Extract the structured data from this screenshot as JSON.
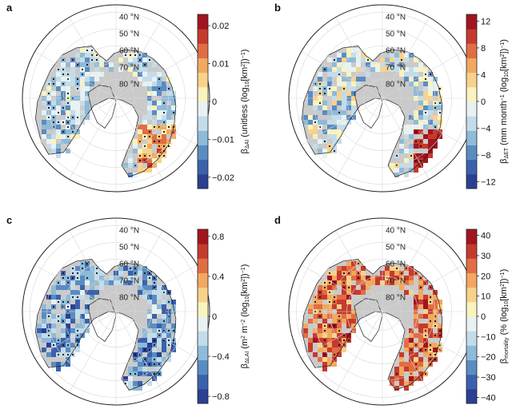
{
  "figure": {
    "panels": [
      {
        "letter": "a",
        "label_html": "β<tspan font-size='7' dy='2'>ΔAI</tspan><tspan dy='-2'> (unitless (log</tspan><tspan font-size='7' dy='2'>10</tspan><tspan dy='-2'>[km</tspan><tspan font-size='7' dy='-3'>2</tspan><tspan dy='3'>])</tspan><tspan font-size='7' dy='-3'>−1</tspan><tspan dy='3'>)</tspan>"
      },
      {
        "letter": "b",
        "label_html": "β<tspan font-size='7' dy='2'>ΔET</tspan><tspan dy='-2'> (mm month</tspan><tspan font-size='7' dy='-3'>−1</tspan><tspan dy='3'> (log</tspan><tspan font-size='7' dy='2'>10</tspan><tspan dy='-2'>[km</tspan><tspan font-size='7' dy='-3'>2</tspan><tspan dy='3'>])</tspan><tspan font-size='7' dy='-3'>−1</tspan><tspan dy='3'>)</tspan>"
      },
      {
        "letter": "c",
        "label_html": "β<tspan font-size='7' dy='2'>ΔLAI</tspan><tspan dy='-2'> (m</tspan><tspan font-size='7' dy='-3'>2</tspan><tspan dy='3'> m</tspan><tspan font-size='7' dy='-3'>−2</tspan><tspan dy='3'> (log</tspan><tspan font-size='7' dy='2'>10</tspan><tspan dy='-2'>[km</tspan><tspan font-size='7' dy='-3'>2</tspan><tspan dy='3'>])</tspan><tspan font-size='7' dy='-3'>−1</tspan><tspan dy='3'>)</tspan>"
      },
      {
        "letter": "d",
        "label_html": "β<tspan font-size='7' dy='2'>mortality</tspan><tspan dy='-2'> (% (log</tspan><tspan font-size='7' dy='2'>10</tspan><tspan dy='-2'>[km</tspan><tspan font-size='7' dy='-3'>2</tspan><tspan dy='3'>])</tspan><tspan font-size='7' dy='-3'>−1</tspan><tspan dy='3'>)</tspan>"
      }
    ]
  },
  "chart_data": [
    {
      "panel": "a",
      "type": "heatmap",
      "projection": "north polar stereographic",
      "latitude_labels": [
        "40 °N",
        "50 °N",
        "60 °N",
        "70 °N",
        "80 °N"
      ],
      "variable": "βΔAI",
      "colorbar_label": "βΔAI (unitless (log10[km2])−1)",
      "colorbar_range": [
        -0.023,
        0.023
      ],
      "colorbar_ticks": [
        0.02,
        0.01,
        0,
        -0.01,
        -0.02
      ],
      "colorbar_tick_labels": [
        "0.02",
        "0.01",
        "0",
        "−0.01",
        "−0.02"
      ],
      "dominant_values": "mostly negative (blue) across boreal belt; positive (orange) patches in Central Asia",
      "stippling": "dense dots over Siberia and Canada"
    },
    {
      "panel": "b",
      "type": "heatmap",
      "projection": "north polar stereographic",
      "latitude_labels": [
        "40 °N",
        "50 °N",
        "60 °N",
        "70 °N",
        "80 °N"
      ],
      "variable": "βΔET",
      "colorbar_label": "βΔET (mm month−1 (log10[km2])−1)",
      "colorbar_range": [
        -13,
        13
      ],
      "colorbar_ticks": [
        12,
        8,
        4,
        0,
        -4,
        -8,
        -12
      ],
      "colorbar_tick_labels": [
        "12",
        "8",
        "4",
        "0",
        "−4",
        "−8",
        "−12"
      ],
      "dominant_values": "mostly negative (blue) in Siberia and Canada; red patches in East Asia",
      "stippling": "scattered dots"
    },
    {
      "panel": "c",
      "type": "heatmap",
      "projection": "north polar stereographic",
      "latitude_labels": [
        "40 °N",
        "50 °N",
        "60 °N",
        "70 °N",
        "80 °N"
      ],
      "variable": "βΔLAI",
      "colorbar_label": "βΔLAI (m2 m−2 (log10[km2])−1)",
      "colorbar_range": [
        -0.87,
        0.87
      ],
      "colorbar_ticks": [
        0.8,
        0.4,
        0,
        -0.4,
        -0.8
      ],
      "colorbar_tick_labels": [
        "0.8",
        "0.4",
        "0",
        "−0.4",
        "−0.8"
      ],
      "dominant_values": "mostly negative (dark blue) across boreal belt",
      "stippling": "dense dots over Siberia and Canada"
    },
    {
      "panel": "d",
      "type": "heatmap",
      "projection": "north polar stereographic",
      "latitude_labels": [
        "40 °N",
        "50 °N",
        "60 °N",
        "70 °N",
        "80 °N"
      ],
      "variable": "βmortality",
      "colorbar_label": "βmortality (% (log10[km2])−1)",
      "colorbar_range": [
        -43,
        43
      ],
      "colorbar_ticks": [
        40,
        30,
        20,
        10,
        0,
        -10,
        -20,
        -30,
        -40
      ],
      "colorbar_tick_labels": [
        "40",
        "30",
        "20",
        "10",
        "0",
        "−10",
        "−20",
        "−30",
        "−40"
      ],
      "dominant_values": "mostly positive (orange-red) across boreal belt",
      "stippling": "dense dots over Siberia and Canada"
    }
  ],
  "colors": {
    "ramp": [
      "#2b3f93",
      "#3a62ac",
      "#5a8cc2",
      "#8fbad8",
      "#c3dcea",
      "#e9f2f2",
      "#fbf3bd",
      "#f8d28a",
      "#f2a85e",
      "#e26d43",
      "#c63a2e",
      "#a3141f"
    ],
    "land_gray": "#cacaca",
    "coast": "#1a1a1a",
    "grid": "#d9d9d9",
    "dot": "#111111"
  }
}
